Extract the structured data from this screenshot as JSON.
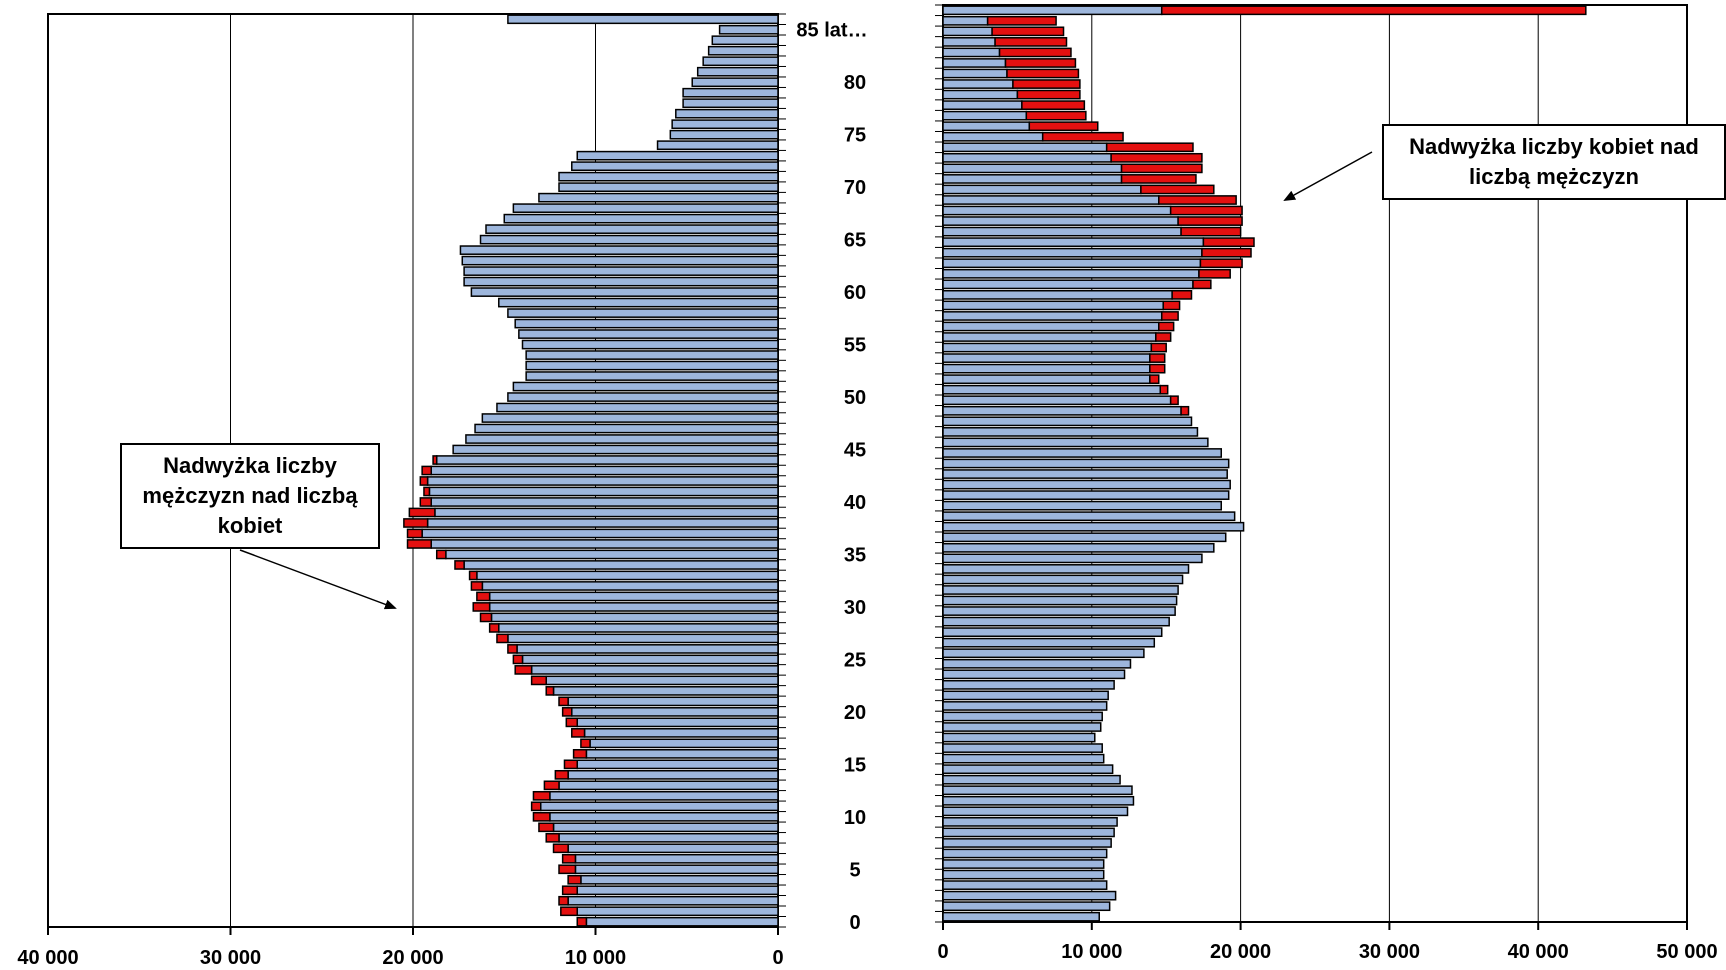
{
  "chart_data": {
    "type": "bar",
    "orientation": "horizontal",
    "age_labels": [
      "0",
      "5",
      "10",
      "15",
      "20",
      "25",
      "30",
      "35",
      "40",
      "45",
      "50",
      "55",
      "60",
      "65",
      "70",
      "75",
      "80",
      "85 lat…"
    ],
    "left_axis": {
      "ticks": [
        "40 000",
        "30 000",
        "20 000",
        "10 000",
        "0"
      ],
      "xlim": [
        0,
        40000
      ],
      "reversed": true
    },
    "right_axis": {
      "ticks": [
        "0",
        "10 000",
        "20 000",
        "30 000",
        "40 000",
        "50 000"
      ],
      "xlim": [
        0,
        50000
      ]
    },
    "colors": {
      "base": "#9db6dc",
      "excess": "#e41010",
      "border": "#000000"
    },
    "left_panel": {
      "annotation": "Nadwyżka liczby mężczyzn nad liczbą kobiet",
      "base": [
        10500,
        11000,
        11500,
        11000,
        10800,
        11100,
        11100,
        11500,
        12000,
        12300,
        12500,
        13000,
        12500,
        12000,
        11500,
        11000,
        10500,
        10300,
        10600,
        11000,
        11300,
        11500,
        12300,
        12700,
        13500,
        14000,
        14300,
        14800,
        15300,
        15700,
        15800,
        15800,
        16200,
        16500,
        17200,
        18200,
        19000,
        19500,
        19200,
        18800,
        19000,
        19100,
        19200,
        19000,
        18700,
        17800,
        17100,
        16600,
        16200,
        15400,
        14800,
        14500,
        13800,
        13800,
        13800,
        14000,
        14200,
        14400,
        14800,
        15300,
        16800,
        17200,
        17200,
        17300,
        17400,
        16300,
        16000,
        15000,
        14500,
        13100,
        12000,
        12000,
        11300,
        11000,
        6600,
        5900,
        5800,
        5600,
        5200,
        5200,
        4700,
        4400,
        4100,
        3800,
        3600,
        3200,
        14800
      ],
      "excess": [
        500,
        900,
        500,
        800,
        700,
        900,
        700,
        800,
        700,
        800,
        900,
        500,
        900,
        800,
        700,
        700,
        700,
        500,
        700,
        600,
        500,
        500,
        400,
        800,
        900,
        500,
        500,
        600,
        500,
        600,
        900,
        700,
        600,
        400,
        500,
        500,
        1300,
        800,
        1300,
        1400,
        600,
        300,
        400,
        500,
        200,
        0,
        0,
        0,
        0,
        0,
        0,
        0,
        0,
        0,
        0,
        0,
        0,
        0,
        0,
        0,
        0,
        0,
        0,
        0,
        0,
        0,
        0,
        0,
        0,
        0,
        0,
        0,
        0,
        0,
        0,
        0,
        0,
        0,
        0,
        0,
        0,
        0,
        0,
        0,
        0,
        0,
        0
      ]
    },
    "right_panel": {
      "annotation": "Nadwyżka liczby kobiet nad liczbą mężczyzn",
      "base": [
        10500,
        11200,
        11600,
        11000,
        10800,
        10800,
        11000,
        11300,
        11500,
        11700,
        12400,
        12800,
        12700,
        11900,
        11400,
        10800,
        10700,
        10200,
        10600,
        10700,
        11000,
        11100,
        11500,
        12200,
        12600,
        13500,
        14200,
        14700,
        15200,
        15600,
        15700,
        15800,
        16100,
        16500,
        17400,
        18200,
        19000,
        20200,
        19600,
        18700,
        19200,
        19300,
        19100,
        19200,
        18700,
        17800,
        17100,
        16700,
        16000,
        15300,
        14600,
        13900,
        13900,
        13900,
        14000,
        14300,
        14500,
        14700,
        14800,
        15400,
        16800,
        17200,
        17300,
        17400,
        17500,
        16000,
        15800,
        15300,
        14500,
        13300,
        12000,
        12000,
        11300,
        11000,
        6700,
        5800,
        5600,
        5300,
        5000,
        4700,
        4300,
        4200,
        3800,
        3500,
        3300,
        3000,
        14700
      ],
      "excess": [
        0,
        0,
        0,
        0,
        0,
        0,
        0,
        0,
        0,
        0,
        0,
        0,
        0,
        0,
        0,
        0,
        0,
        0,
        0,
        0,
        0,
        0,
        0,
        0,
        0,
        0,
        0,
        0,
        0,
        0,
        0,
        0,
        0,
        0,
        0,
        0,
        0,
        0,
        0,
        0,
        0,
        0,
        0,
        0,
        0,
        0,
        0,
        0,
        500,
        500,
        500,
        600,
        1000,
        1000,
        1000,
        1000,
        1000,
        1100,
        1100,
        1300,
        1200,
        2100,
        2800,
        3300,
        3400,
        4000,
        4300,
        4800,
        5200,
        4900,
        5000,
        5400,
        6100,
        5800,
        5400,
        4600,
        4000,
        4200,
        4200,
        4500,
        4800,
        4700,
        4800,
        4800,
        4800,
        4600,
        28500
      ]
    }
  }
}
